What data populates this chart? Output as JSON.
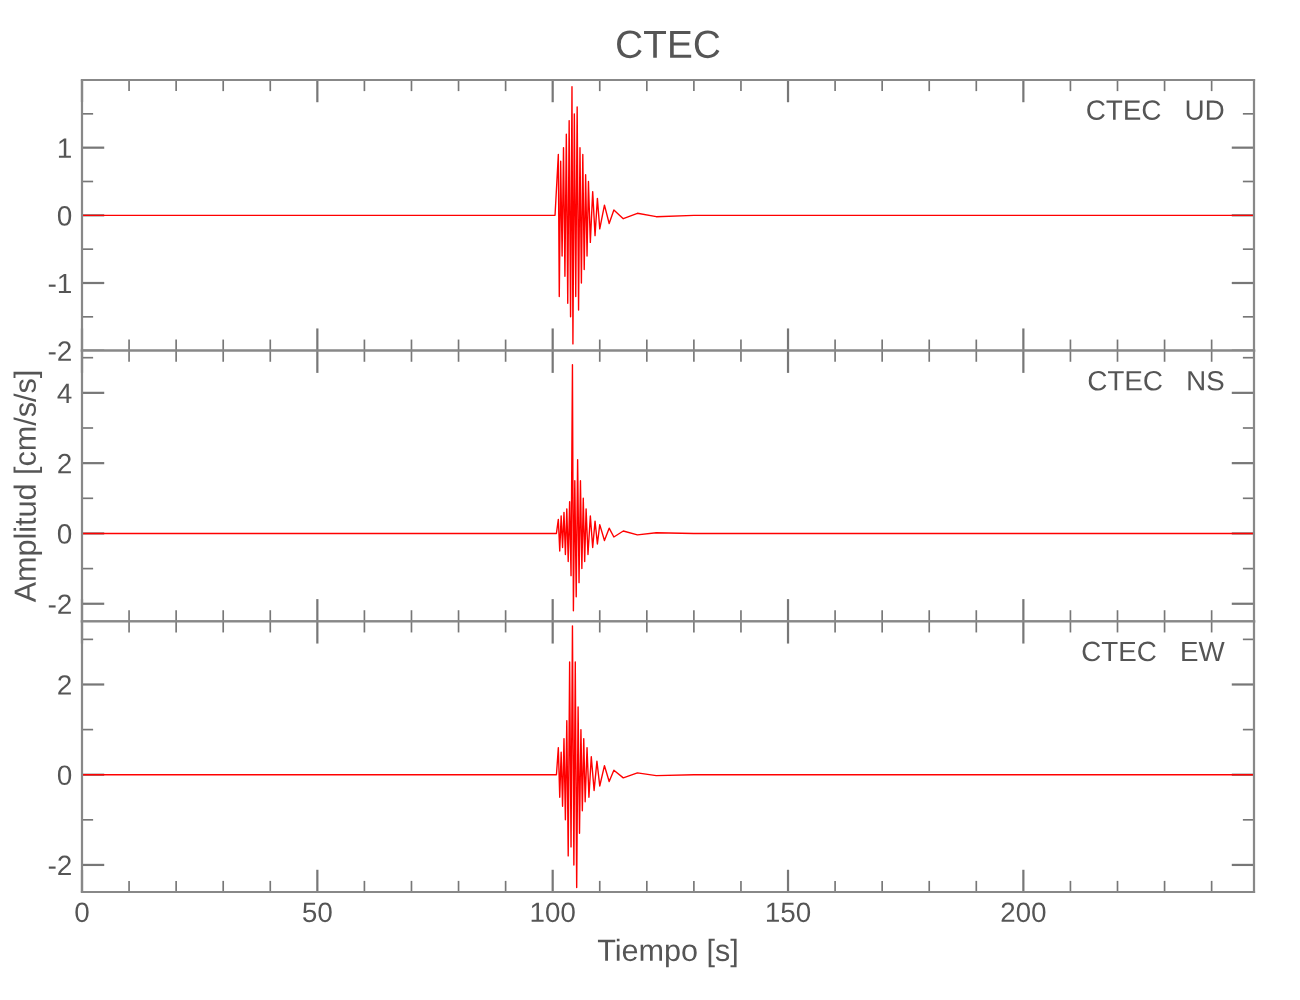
{
  "chart_data": [
    {
      "type": "line",
      "title": "CTEC",
      "annotations": [
        "CTEC   UD"
      ],
      "xlim": [
        0,
        249
      ],
      "xticks": [
        {
          "value": 0,
          "label": null
        },
        {
          "value": 50,
          "label": null
        },
        {
          "value": 100,
          "label": null
        },
        {
          "value": 150,
          "label": null
        },
        {
          "value": 200,
          "label": null
        }
      ],
      "ylim": [
        -2,
        2
      ],
      "yticks": [
        -2,
        -1,
        0,
        1
      ],
      "tick_labels": "y",
      "grid": false,
      "legend": false,
      "series": [
        {
          "color": "#ff0000",
          "x": [
            0,
            100.5,
            101.2,
            101.4,
            101.7,
            102,
            102.3,
            102.6,
            102.9,
            103.2,
            103.5,
            103.8,
            104.1,
            104.3,
            104.6,
            104.9,
            105.2,
            105.5,
            105.8,
            106.1,
            106.4,
            106.7,
            107,
            107.3,
            107.6,
            108,
            108.5,
            109,
            109.5,
            110,
            111,
            112,
            113,
            115,
            118,
            122,
            130,
            249
          ],
          "values": [
            0,
            0,
            0.9,
            -1.2,
            0.8,
            -0.6,
            1.0,
            -0.9,
            1.2,
            -1.3,
            1.4,
            -1.5,
            1.9,
            -1.9,
            1.5,
            -1.2,
            1.6,
            -1.4,
            1.0,
            -1.0,
            0.9,
            -0.8,
            0.6,
            -0.6,
            0.5,
            -0.4,
            0.35,
            -0.3,
            0.25,
            -0.2,
            0.15,
            -0.12,
            0.08,
            -0.05,
            0.03,
            -0.02,
            0,
            0
          ]
        }
      ]
    },
    {
      "type": "line",
      "ylabel": "Amplitud [cm/s/s]",
      "annotations": [
        "CTEC   NS"
      ],
      "xlim": [
        0,
        249
      ],
      "xticks": [
        {
          "value": 0,
          "label": null
        },
        {
          "value": 50,
          "label": null
        },
        {
          "value": 100,
          "label": null
        },
        {
          "value": 150,
          "label": null
        },
        {
          "value": 200,
          "label": null
        }
      ],
      "ylim": [
        -2.5,
        5.2
      ],
      "yticks": [
        -2,
        0,
        2,
        4
      ],
      "tick_labels": "y",
      "grid": false,
      "legend": false,
      "series": [
        {
          "color": "#ff0000",
          "x": [
            0,
            100.8,
            101.2,
            101.5,
            101.8,
            102.1,
            102.4,
            102.7,
            103,
            103.3,
            103.6,
            103.9,
            104.2,
            104.4,
            104.7,
            105,
            105.3,
            105.6,
            105.9,
            106.2,
            106.5,
            106.8,
            107.1,
            107.5,
            108,
            108.5,
            109,
            109.5,
            110,
            111,
            112,
            113,
            115,
            118,
            122,
            130,
            249
          ],
          "values": [
            0,
            0,
            0.4,
            -0.5,
            0.5,
            -0.4,
            0.6,
            -0.6,
            0.7,
            -0.8,
            0.9,
            -1.2,
            4.8,
            -2.2,
            1.5,
            -1.8,
            2.1,
            -1.4,
            1.5,
            -1.0,
            1.0,
            -0.8,
            0.7,
            -0.6,
            0.5,
            -0.4,
            0.35,
            -0.3,
            0.25,
            -0.2,
            0.15,
            -0.1,
            0.07,
            -0.04,
            0.02,
            0,
            0
          ]
        }
      ]
    },
    {
      "type": "line",
      "xlabel": "Tiempo [s]",
      "annotations": [
        "CTEC   EW"
      ],
      "xlim": [
        0,
        249
      ],
      "xticks": [
        0,
        50,
        100,
        150,
        200
      ],
      "ylim": [
        -2.6,
        3.4
      ],
      "yticks": [
        -2,
        0,
        2
      ],
      "grid": false,
      "legend": false,
      "series": [
        {
          "color": "#ff0000",
          "x": [
            0,
            100.8,
            101.2,
            101.5,
            101.8,
            102.1,
            102.4,
            102.7,
            103,
            103.3,
            103.6,
            103.9,
            104.2,
            104.5,
            104.8,
            105.1,
            105.4,
            105.7,
            106,
            106.3,
            106.6,
            106.9,
            107.3,
            107.7,
            108.2,
            108.8,
            109.4,
            110,
            111,
            112,
            113,
            115,
            118,
            122,
            130,
            249
          ],
          "values": [
            0,
            0,
            0.6,
            -0.5,
            0.5,
            -0.7,
            0.8,
            -1.0,
            1.2,
            -1.8,
            2.5,
            -1.6,
            3.3,
            -2.0,
            2.5,
            -2.5,
            1.5,
            -1.3,
            1.0,
            -0.8,
            0.8,
            -0.6,
            0.6,
            -0.5,
            0.4,
            -0.35,
            0.3,
            -0.25,
            0.2,
            -0.15,
            0.1,
            -0.07,
            0.04,
            -0.02,
            0,
            0
          ]
        }
      ]
    }
  ]
}
